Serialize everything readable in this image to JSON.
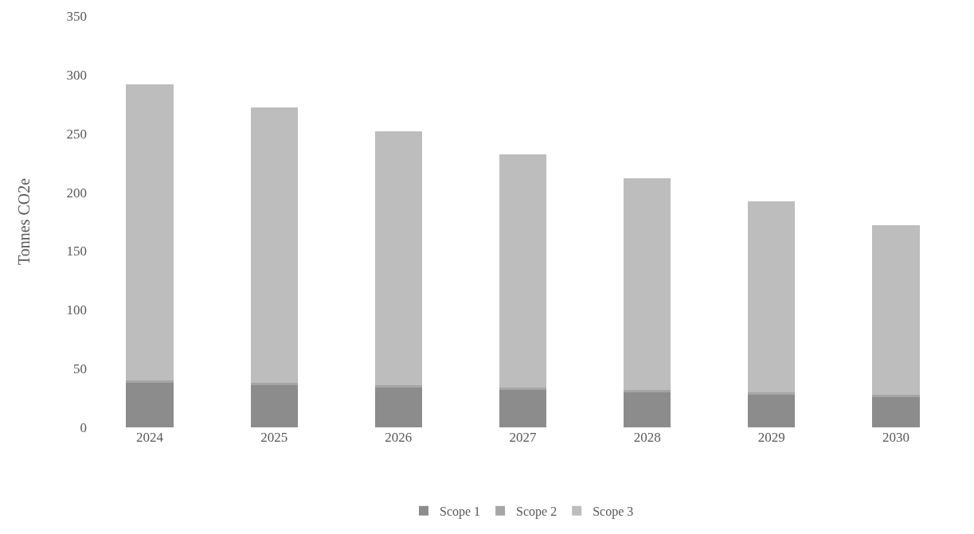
{
  "chart_data": {
    "type": "bar",
    "stacked": true,
    "ylabel": "Tonnes CO2e",
    "categories": [
      "2024",
      "2025",
      "2026",
      "2027",
      "2028",
      "2029",
      "2030"
    ],
    "series": [
      {
        "name": "Scope 1",
        "color": "#8c8c8c",
        "values": [
          38,
          36,
          34,
          32,
          30,
          28,
          26
        ]
      },
      {
        "name": "Scope 2",
        "color": "#a6a6a6",
        "values": [
          2,
          2,
          2,
          2,
          2,
          2,
          2
        ]
      },
      {
        "name": "Scope 3",
        "color": "#bdbdbd",
        "values": [
          252,
          234,
          216,
          198,
          180,
          162,
          144
        ]
      }
    ],
    "ylim": [
      0,
      350
    ],
    "yticks": [
      0,
      50,
      100,
      150,
      200,
      250,
      300,
      350
    ],
    "legend": "bottom"
  }
}
